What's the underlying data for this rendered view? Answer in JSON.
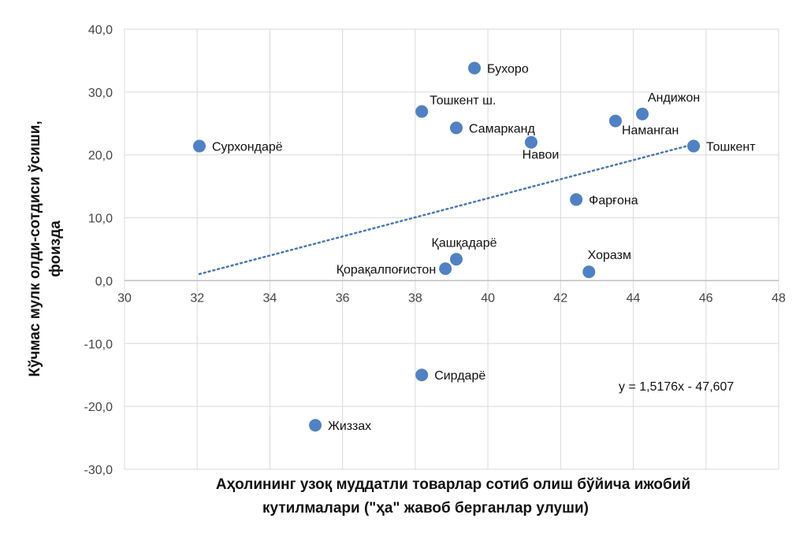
{
  "chart_data": {
    "type": "scatter",
    "xlabel": [
      "Аҳолининг узоқ муддатли товарлар сотиб олиш бўйича ижобий",
      "кутилмалари (\"ҳа\" жавоб берганлар улуши)"
    ],
    "ylabel": [
      "Кўчмас мулк олди-сотдиси ўсиши,",
      "фоизда"
    ],
    "xlim": [
      30,
      48
    ],
    "ylim": [
      -30,
      40
    ],
    "x_ticks": [
      30,
      32,
      34,
      36,
      38,
      40,
      42,
      44,
      46,
      48
    ],
    "x_tick_labels": [
      "30",
      "32",
      "34",
      "36",
      "38",
      "40",
      "42",
      "44",
      "46",
      "48"
    ],
    "y_ticks": [
      40,
      30,
      20,
      10,
      0,
      -10,
      -20,
      -30
    ],
    "y_tick_labels": [
      "40,0",
      "30,0",
      "20,0",
      "10,0",
      "0,0",
      "-10,0",
      "-20,0",
      "-30,0"
    ],
    "grid": true,
    "marker_color": "#4f81c4",
    "trend_color": "#4a78b0",
    "points": [
      {
        "label": "Сурхондарё",
        "x": 32.06,
        "y": 21.4,
        "pos": "right"
      },
      {
        "label": "Бухоро",
        "x": 39.63,
        "y": 33.8,
        "pos": "right"
      },
      {
        "label": "Тошкент ш.",
        "x": 38.18,
        "y": 26.9,
        "pos": "above-right"
      },
      {
        "label": "Самарканд",
        "x": 39.13,
        "y": 24.3,
        "pos": "right"
      },
      {
        "label": "Навои",
        "x": 41.19,
        "y": 22.0,
        "pos": "below"
      },
      {
        "label": "Андижон",
        "x": 44.25,
        "y": 26.5,
        "pos": "above"
      },
      {
        "label": "Наманган",
        "x": 43.51,
        "y": 25.4,
        "pos": "below-right"
      },
      {
        "label": "Тошкент",
        "x": 45.66,
        "y": 21.4,
        "pos": "right"
      },
      {
        "label": "Фарғона",
        "x": 42.43,
        "y": 12.9,
        "pos": "right"
      },
      {
        "label": "Хоразм",
        "x": 42.78,
        "y": 1.4,
        "pos": "above"
      },
      {
        "label": "Қашқадарё",
        "x": 39.13,
        "y": 3.4,
        "pos": "above"
      },
      {
        "label": "Қорақалпоғистон",
        "x": 38.83,
        "y": 1.9,
        "pos": "left"
      },
      {
        "label": "Сирдарё",
        "x": 38.18,
        "y": -15.0,
        "pos": "right"
      },
      {
        "label": "Жиззах",
        "x": 35.25,
        "y": -23.0,
        "pos": "right"
      }
    ],
    "trendline": {
      "type": "linear",
      "slope": 1.5176,
      "intercept": -47.607,
      "x_range": [
        32.06,
        45.66
      ],
      "equation": "y = 1,5176x - 47,607"
    }
  }
}
